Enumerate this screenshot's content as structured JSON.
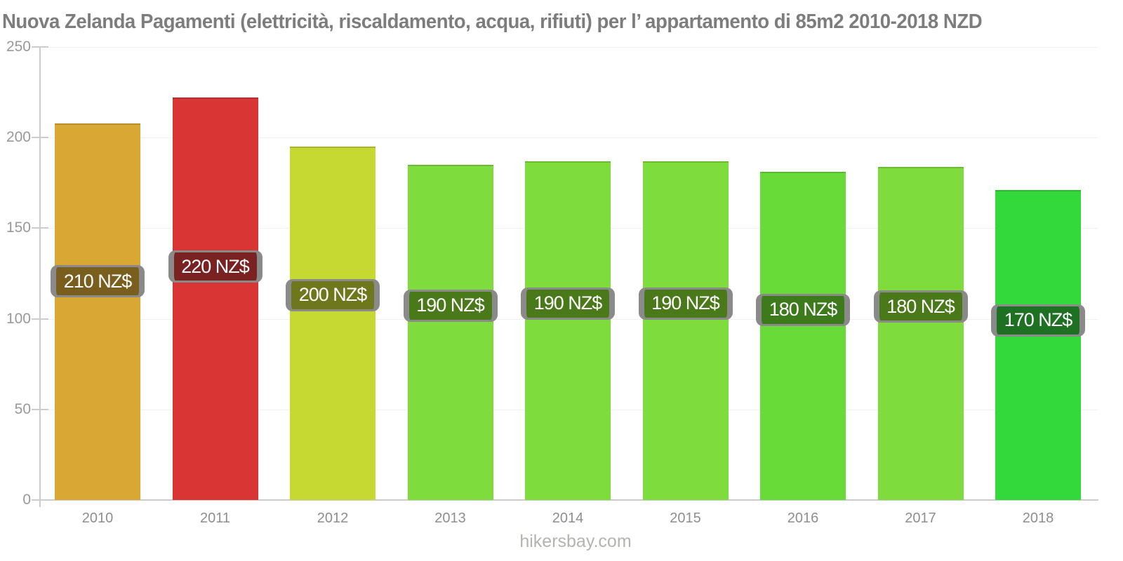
{
  "chart_data": {
    "type": "bar",
    "title": "Nuova Zelanda Pagamenti (elettricità, riscaldamento, acqua, rifiuti) per l’ appartamento di 85m2 2010-2018 NZD",
    "categories": [
      "2010",
      "2011",
      "2012",
      "2013",
      "2014",
      "2015",
      "2016",
      "2017",
      "2018"
    ],
    "values": [
      208,
      222,
      195,
      185,
      187,
      187,
      181,
      184,
      171
    ],
    "bar_labels": [
      "210 NZ$",
      "220 NZ$",
      "200 NZ$",
      "190 NZ$",
      "190 NZ$",
      "190 NZ$",
      "180 NZ$",
      "180 NZ$",
      "170 NZ$"
    ],
    "bar_colors": [
      "#D9A733",
      "#D93535",
      "#C6D832",
      "#7EDC3C",
      "#7EDC3C",
      "#7EDC3C",
      "#69DB38",
      "#7EDC3C",
      "#33D93B"
    ],
    "label_colors": [
      "#7A5E1E",
      "#7A2121",
      "#6E771B",
      "#4A7919",
      "#4A7919",
      "#4A7919",
      "#3C7A1C",
      "#4A7919",
      "#1E7022"
    ],
    "xlabel": "",
    "ylabel": "",
    "ylim": [
      0,
      250
    ],
    "yticks": [
      0,
      50,
      100,
      150,
      200,
      250
    ],
    "ytick_labels": [
      "0",
      "50",
      "100",
      "150",
      "200",
      "250"
    ],
    "grid": true,
    "legend": false,
    "currency": "NZD"
  },
  "footer": {
    "watermark": "hikersbay.com"
  },
  "colors": {
    "title": "#7D7D7D",
    "axis": "#CCCCCC",
    "gridline": "#F1F1F1",
    "ytick_label": "#999999",
    "xtick_label": "#8E8E8E",
    "value_label_text": "#FFFFFF",
    "value_label_border": "#8A8A8A",
    "watermark": "#B4B4AE",
    "background": "#FFFFFF"
  }
}
